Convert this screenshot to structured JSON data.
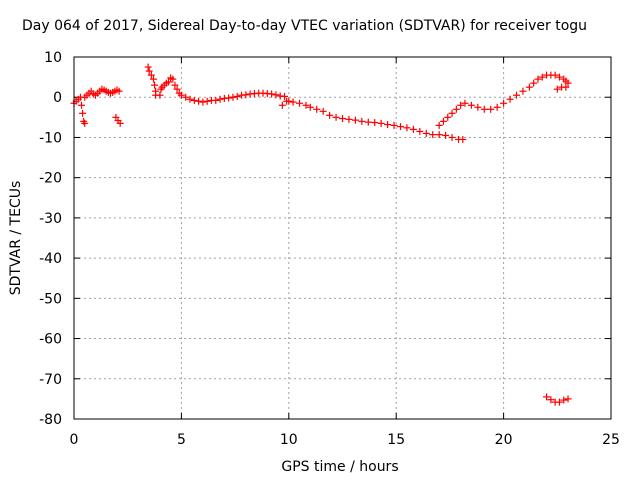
{
  "chart_data": {
    "type": "scatter",
    "title": "Day 064 of 2017, Sidereal Day-to-day VTEC variation (SDTVAR) for receiver togu",
    "xlabel": "GPS time / hours",
    "ylabel": "SDTVAR / TECUs",
    "xlim": [
      0,
      25
    ],
    "ylim": [
      -80,
      10
    ],
    "xticks": [
      0,
      5,
      10,
      15,
      20,
      25
    ],
    "yticks": [
      10,
      0,
      -10,
      -20,
      -30,
      -40,
      -50,
      -60,
      -70,
      -80
    ],
    "grid": true,
    "marker": "plus",
    "color": "#ff0000",
    "series": [
      {
        "name": "SDTVAR",
        "points": [
          [
            0.0,
            -1.5
          ],
          [
            0.1,
            -1.0
          ],
          [
            0.2,
            -0.5
          ],
          [
            0.3,
            0.0
          ],
          [
            0.35,
            -2.0
          ],
          [
            0.4,
            -4.0
          ],
          [
            0.45,
            -6.0
          ],
          [
            0.5,
            -6.5
          ],
          [
            0.5,
            0.0
          ],
          [
            0.6,
            0.5
          ],
          [
            0.7,
            1.0
          ],
          [
            0.8,
            1.5
          ],
          [
            0.9,
            0.8
          ],
          [
            1.0,
            0.5
          ],
          [
            1.1,
            1.0
          ],
          [
            1.2,
            1.5
          ],
          [
            1.3,
            2.0
          ],
          [
            1.4,
            1.8
          ],
          [
            1.5,
            1.5
          ],
          [
            1.6,
            1.2
          ],
          [
            1.7,
            1.0
          ],
          [
            1.8,
            1.2
          ],
          [
            1.9,
            1.5
          ],
          [
            2.0,
            1.8
          ],
          [
            2.1,
            1.5
          ],
          [
            1.95,
            -5.0
          ],
          [
            2.05,
            -5.8
          ],
          [
            2.15,
            -6.5
          ],
          [
            3.45,
            7.5
          ],
          [
            3.5,
            6.5
          ],
          [
            3.6,
            5.5
          ],
          [
            3.7,
            4.5
          ],
          [
            3.75,
            3.0
          ],
          [
            3.8,
            1.5
          ],
          [
            3.8,
            0.5
          ],
          [
            4.0,
            0.5
          ],
          [
            4.05,
            2.0
          ],
          [
            4.1,
            2.5
          ],
          [
            4.2,
            3.0
          ],
          [
            4.3,
            3.5
          ],
          [
            4.4,
            3.8
          ],
          [
            4.5,
            4.8
          ],
          [
            4.6,
            4.5
          ],
          [
            4.7,
            3.0
          ],
          [
            4.8,
            2.0
          ],
          [
            4.9,
            1.0
          ],
          [
            5.0,
            0.5
          ],
          [
            5.2,
            0.0
          ],
          [
            5.4,
            -0.5
          ],
          [
            5.6,
            -0.8
          ],
          [
            5.8,
            -1.0
          ],
          [
            6.0,
            -1.2
          ],
          [
            6.2,
            -1.0
          ],
          [
            6.4,
            -0.8
          ],
          [
            6.6,
            -0.8
          ],
          [
            6.8,
            -0.5
          ],
          [
            7.0,
            -0.3
          ],
          [
            7.2,
            -0.2
          ],
          [
            7.4,
            0.0
          ],
          [
            7.6,
            0.2
          ],
          [
            7.8,
            0.5
          ],
          [
            8.0,
            0.6
          ],
          [
            8.2,
            0.8
          ],
          [
            8.4,
            0.9
          ],
          [
            8.6,
            1.0
          ],
          [
            8.8,
            1.0
          ],
          [
            9.0,
            0.9
          ],
          [
            9.2,
            0.8
          ],
          [
            9.4,
            0.6
          ],
          [
            9.6,
            0.3
          ],
          [
            9.8,
            0.2
          ],
          [
            9.7,
            -2.0
          ],
          [
            9.9,
            -1.0
          ],
          [
            10.0,
            -1.0
          ],
          [
            10.2,
            -1.2
          ],
          [
            10.5,
            -1.5
          ],
          [
            10.8,
            -2.0
          ],
          [
            11.0,
            -2.5
          ],
          [
            11.3,
            -3.0
          ],
          [
            11.6,
            -3.5
          ],
          [
            11.9,
            -4.5
          ],
          [
            12.2,
            -5.0
          ],
          [
            12.5,
            -5.3
          ],
          [
            12.8,
            -5.5
          ],
          [
            13.1,
            -5.7
          ],
          [
            13.4,
            -6.0
          ],
          [
            13.7,
            -6.2
          ],
          [
            14.0,
            -6.3
          ],
          [
            14.3,
            -6.5
          ],
          [
            14.6,
            -6.8
          ],
          [
            14.9,
            -7.0
          ],
          [
            15.2,
            -7.3
          ],
          [
            15.5,
            -7.6
          ],
          [
            15.8,
            -8.0
          ],
          [
            16.1,
            -8.5
          ],
          [
            16.4,
            -9.0
          ],
          [
            16.7,
            -9.3
          ],
          [
            17.0,
            -9.3
          ],
          [
            17.3,
            -9.5
          ],
          [
            17.6,
            -10.0
          ],
          [
            17.9,
            -10.5
          ],
          [
            18.1,
            -10.5
          ],
          [
            17.0,
            -7.0
          ],
          [
            17.2,
            -6.0
          ],
          [
            17.4,
            -5.0
          ],
          [
            17.6,
            -4.0
          ],
          [
            17.8,
            -3.0
          ],
          [
            18.0,
            -2.0
          ],
          [
            18.2,
            -1.5
          ],
          [
            18.5,
            -2.0
          ],
          [
            18.8,
            -2.5
          ],
          [
            19.1,
            -3.0
          ],
          [
            19.4,
            -3.0
          ],
          [
            19.7,
            -2.5
          ],
          [
            20.0,
            -1.5
          ],
          [
            20.3,
            -0.5
          ],
          [
            20.6,
            0.5
          ],
          [
            20.9,
            1.5
          ],
          [
            21.2,
            2.5
          ],
          [
            21.4,
            3.5
          ],
          [
            21.6,
            4.5
          ],
          [
            21.8,
            5.0
          ],
          [
            22.0,
            5.5
          ],
          [
            22.2,
            5.5
          ],
          [
            22.4,
            5.5
          ],
          [
            22.6,
            5.0
          ],
          [
            22.8,
            4.5
          ],
          [
            22.9,
            4.0
          ],
          [
            23.0,
            3.5
          ],
          [
            22.5,
            2.0
          ],
          [
            22.7,
            2.5
          ],
          [
            22.9,
            2.5
          ],
          [
            22.0,
            -74.5
          ],
          [
            22.2,
            -75.2
          ],
          [
            22.4,
            -75.8
          ],
          [
            22.6,
            -75.8
          ],
          [
            22.8,
            -75.3
          ],
          [
            23.0,
            -75.0
          ]
        ]
      }
    ]
  }
}
